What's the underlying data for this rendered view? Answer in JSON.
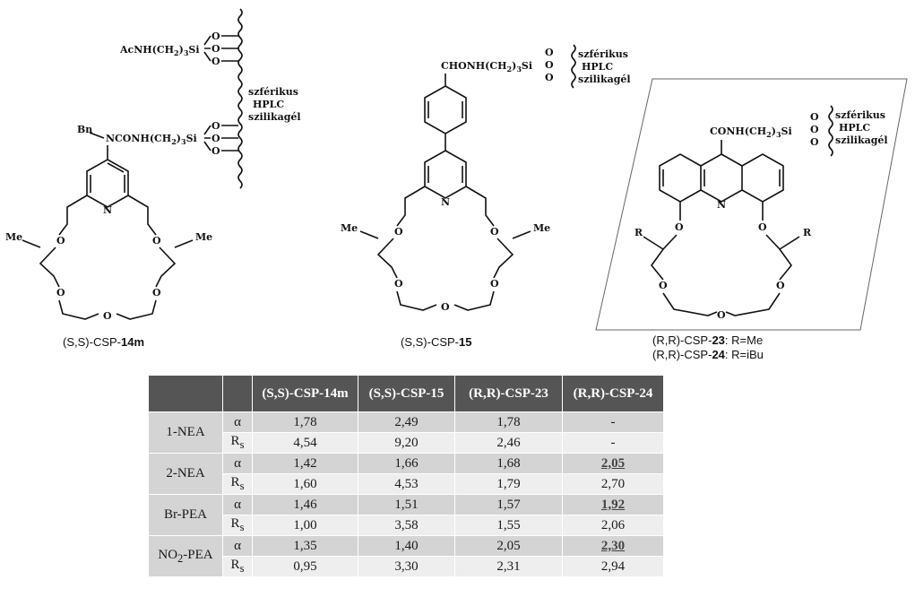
{
  "structures": {
    "s14": {
      "caption_prefix": "(S,S)-CSP-",
      "caption_num": "14m",
      "ac_linker": "AcNH(CH",
      "ac_linker_tail": ")",
      "ac_linker_si": "Si",
      "n_linker": "NCONH(CH",
      "n_linker_tail": ")",
      "n_linker_si": "Si",
      "bn": "Bn",
      "support": [
        "szférikus",
        "HPLC",
        "szilikagél"
      ]
    },
    "s15": {
      "caption_prefix": "(S,S)-CSP-",
      "caption_num": "15",
      "linker": "CHONH(CH",
      "linker_tail": ")",
      "linker_si": "Si",
      "support": [
        "szférikus",
        "HPLC",
        "szilikagél"
      ]
    },
    "s23": {
      "caption1_prefix": "(R,R)-CSP-",
      "caption1_num": "23",
      "caption1_r": ":  R=Me",
      "caption2_prefix": "(R,R)-CSP-",
      "caption2_num": "24",
      "caption2_r": ":  R=iBu",
      "linker": "CONH(CH",
      "linker_tail": ")",
      "linker_si": "Si",
      "support": [
        "szférikus",
        "HPLC",
        "szilikagél"
      ],
      "r_label": "R"
    },
    "atoms": {
      "O": "O",
      "N": "N",
      "Me": "Me",
      "sub2": "2",
      "sub3": "3"
    }
  },
  "table": {
    "headers": [
      "(S,S)-CSP-14m",
      "(S,S)-CSP-15",
      "(R,R)-CSP-23",
      "(R,R)-CSP-24"
    ],
    "rows": [
      {
        "analyte": "1-NEA",
        "alpha": "α",
        "rs": "R",
        "rs_sub": "s",
        "alpha_values": [
          "1,78",
          "2,49",
          "1,78",
          "-"
        ],
        "rs_values": [
          "4,54",
          "9,20",
          "2,46",
          "-"
        ]
      },
      {
        "analyte": "2-NEA",
        "alpha": "α",
        "rs": "R",
        "rs_sub": "s",
        "alpha_values": [
          "1,42",
          "1,66",
          "1,68",
          "2,05"
        ],
        "rs_values": [
          "1,60",
          "4,53",
          "1,79",
          "2,70"
        ]
      },
      {
        "analyte": "Br-PEA",
        "alpha": "α",
        "rs": "R",
        "rs_sub": "s",
        "alpha_values": [
          "1,46",
          "1,51",
          "1,57",
          "1,92"
        ],
        "rs_values": [
          "1,00",
          "3,58",
          "1,55",
          "2,06"
        ]
      },
      {
        "analyte_pre": "NO",
        "analyte_sub": "2",
        "analyte_post": "-PEA",
        "alpha": "α",
        "rs": "R",
        "rs_sub": "s",
        "alpha_values": [
          "1,35",
          "1,40",
          "2,05",
          "2,30"
        ],
        "rs_values": [
          "0,95",
          "3,30",
          "2,31",
          "2,94"
        ]
      }
    ]
  }
}
